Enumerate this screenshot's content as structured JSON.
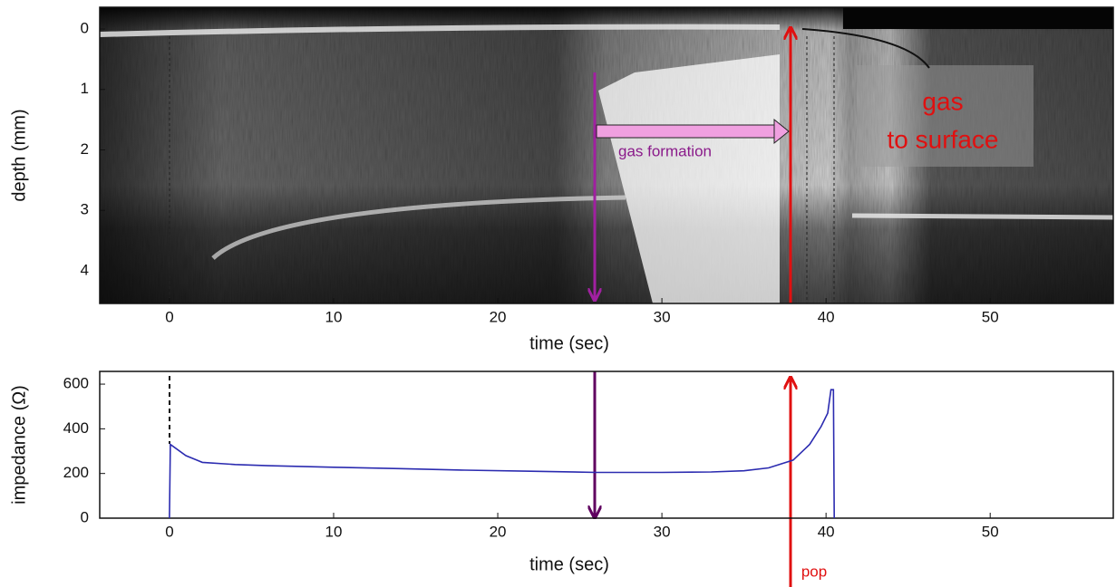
{
  "chart_data": [
    {
      "type": "image",
      "xlim": [
        -4.25,
        57.5
      ],
      "ylim": [
        -0.36,
        4.54
      ],
      "y_inverted": true,
      "xticks": [
        0,
        10,
        20,
        30,
        40,
        50
      ],
      "yticks": [
        0,
        1,
        2,
        3,
        4
      ],
      "xlabel": "time (sec)",
      "ylabel": "depth (mm)",
      "annotations": [
        "gas formation",
        "gas",
        "to surface"
      ]
    },
    {
      "type": "line",
      "xlim": [
        -4.25,
        57.5
      ],
      "ylim": [
        0,
        657
      ],
      "xticks": [
        0,
        10,
        20,
        30,
        40,
        50
      ],
      "yticks": [
        0,
        200,
        400,
        600
      ],
      "xlabel": "time (sec)",
      "ylabel": "impedance (Ω)",
      "color": "#2b2bb0",
      "x": [
        0,
        0.05,
        1,
        2,
        4,
        6,
        10,
        14,
        18,
        22,
        26,
        30,
        33,
        35,
        36.5,
        38,
        39,
        39.7,
        40.1,
        40.3,
        40.45,
        40.5
      ],
      "values": [
        0,
        330,
        280,
        250,
        240,
        235,
        228,
        222,
        215,
        210,
        205,
        205,
        207,
        212,
        225,
        260,
        330,
        410,
        470,
        575,
        575,
        0
      ],
      "annotations": [
        "pop"
      ]
    }
  ]
}
